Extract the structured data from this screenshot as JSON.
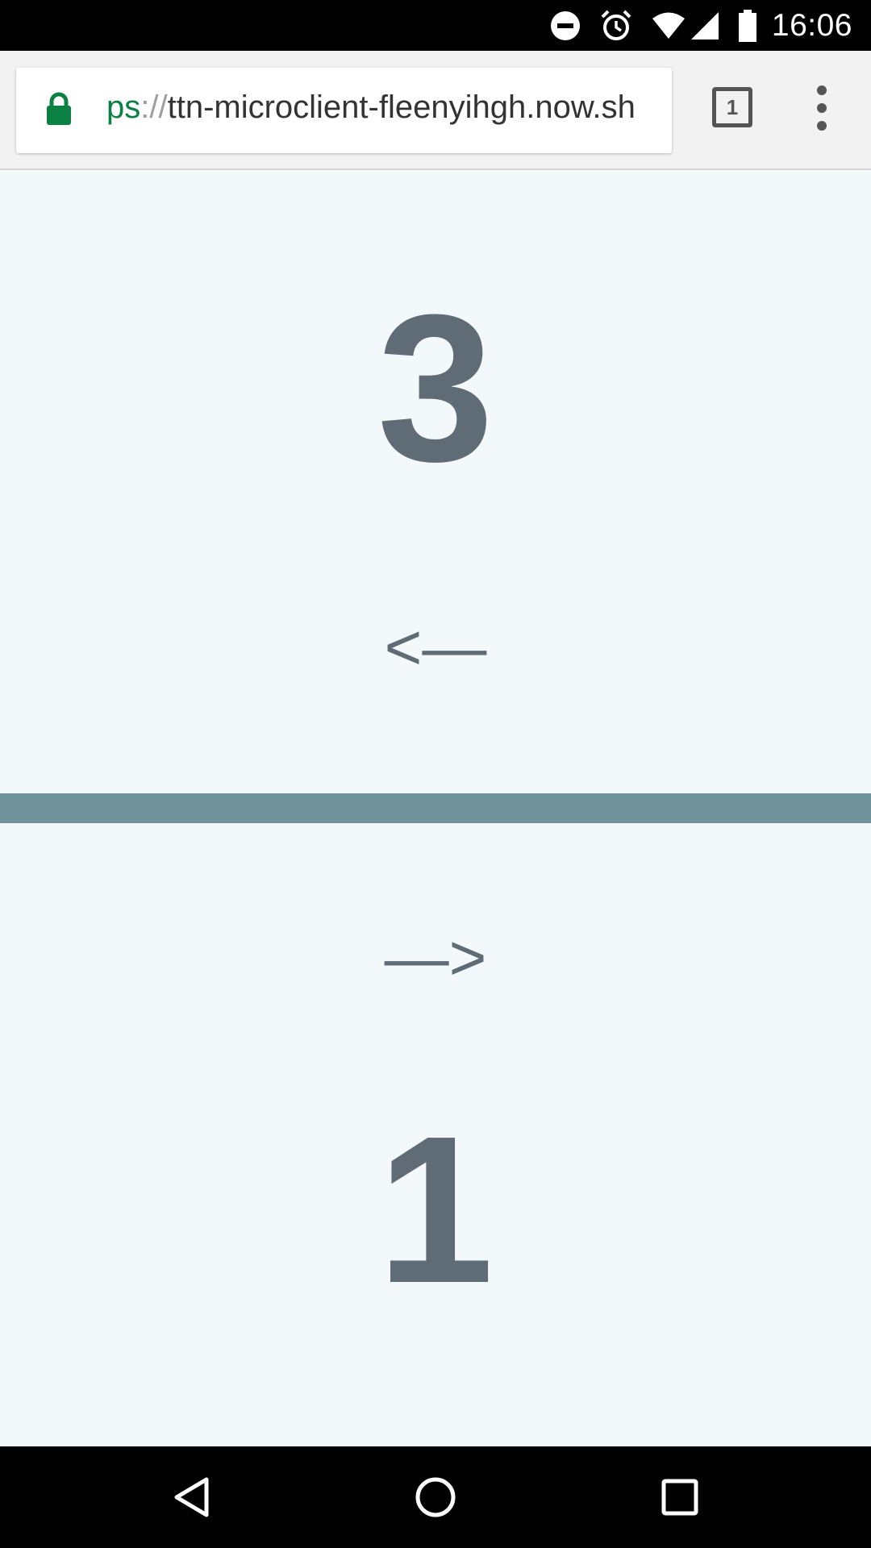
{
  "status_bar": {
    "time": "16:06",
    "icons": [
      "do-not-disturb-icon",
      "alarm-icon",
      "wifi-icon",
      "signal-icon",
      "battery-icon"
    ]
  },
  "browser": {
    "url_scheme": "ps",
    "url_separator": "://",
    "url_host": "ttn-microclient-fleenyihgh.now.sh",
    "tab_count": "1",
    "secure_color": "#0b8043"
  },
  "page": {
    "top_number": "3",
    "left_arrow": "<—",
    "right_arrow": "—>",
    "bottom_number": "1",
    "divider_color": "#71949c",
    "text_color": "#5f6b75",
    "background_color": "#f3f9fa"
  },
  "nav_bar": {
    "buttons": [
      "back-icon",
      "home-icon",
      "recents-icon"
    ]
  }
}
